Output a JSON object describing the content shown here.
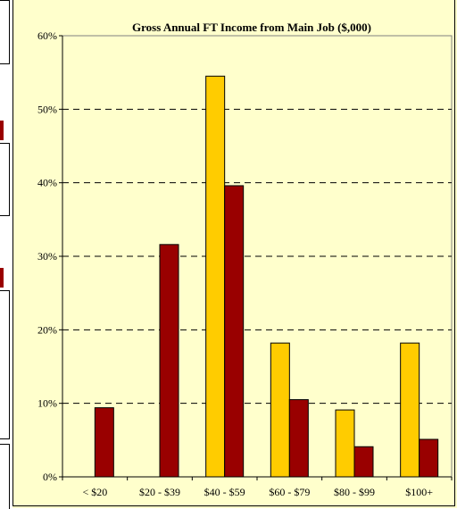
{
  "chart_data": {
    "type": "bar",
    "title": "Gross Annual FT Income from Main Job ($,000)",
    "categories": [
      "< $20",
      "$20 - $39",
      "$40 - $59",
      "$60 - $79",
      "$80 - $99",
      "$100+"
    ],
    "series": [
      {
        "values": [
          0,
          0,
          54.5,
          18.2,
          9.1,
          18.2
        ],
        "color": "#ffcc00"
      },
      {
        "values": [
          9.4,
          31.6,
          39.6,
          10.5,
          4.1,
          5.1
        ],
        "color": "#990000"
      }
    ],
    "ylim": [
      0,
      60
    ],
    "yticks": [
      0,
      10,
      20,
      30,
      40,
      50,
      60
    ],
    "ytick_labels": [
      "0%",
      "10%",
      "20%",
      "30%",
      "40%",
      "50%",
      "60%"
    ],
    "grid": true,
    "background": "#ffffcc"
  }
}
